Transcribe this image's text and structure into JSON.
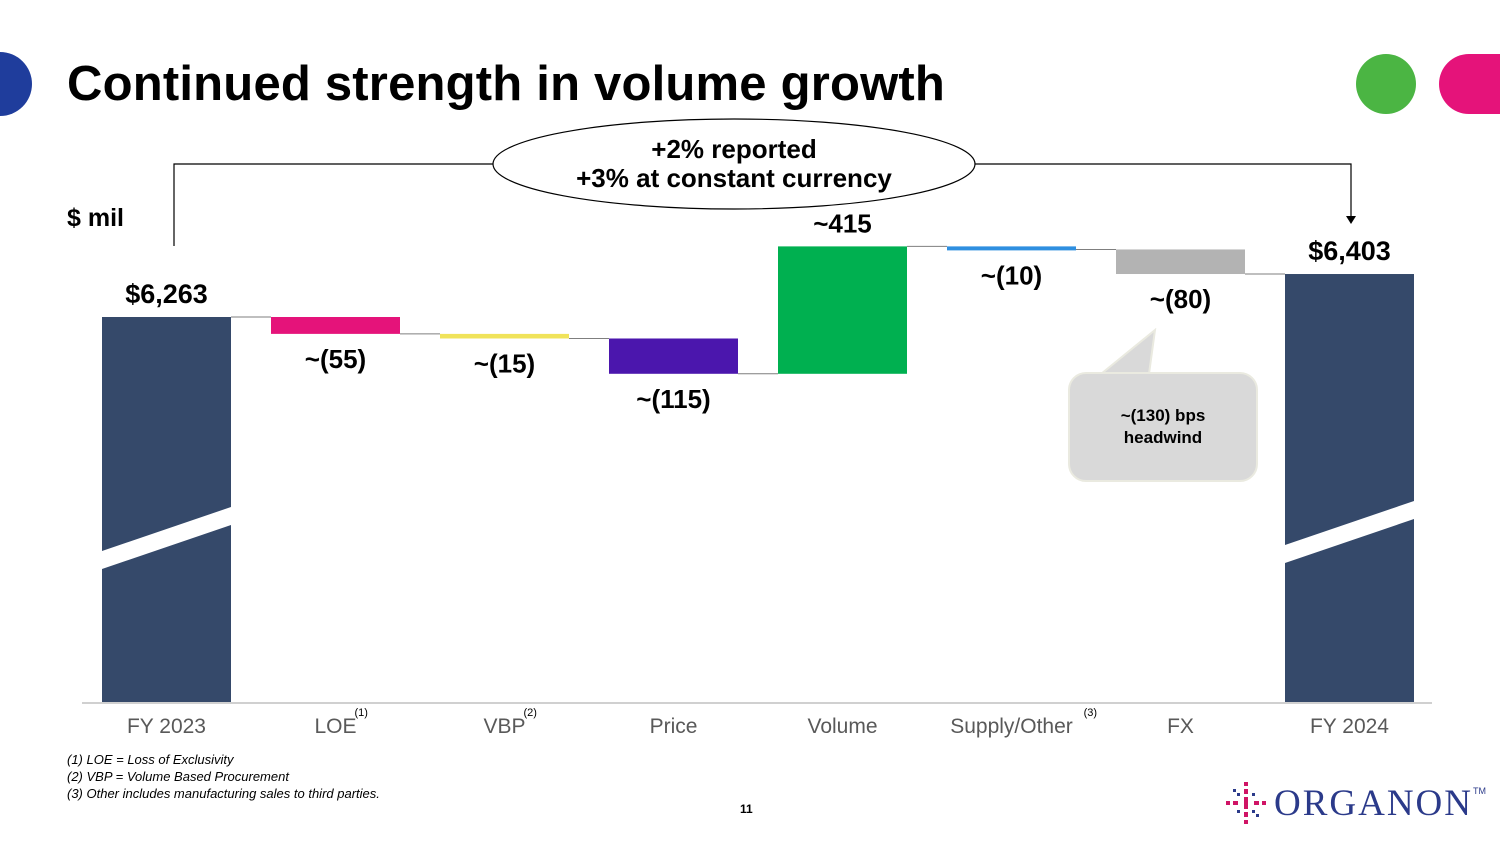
{
  "title": "Continued strength in volume growth",
  "unit_label": "$ mil",
  "summary": {
    "line1": "+2% reported",
    "line2": "+3% at constant currency"
  },
  "callout": {
    "line1": "~(130) bps",
    "line2": "headwind"
  },
  "footnotes": [
    "(1) LOE = Loss of Exclusivity",
    "(2) VBP = Volume Based Procurement",
    "(3) Other includes manufacturing sales to third parties."
  ],
  "page_number": "11",
  "logo": {
    "text": "ORGANON",
    "tm": "TM"
  },
  "colors": {
    "total": "#35496a",
    "loe": "#e5137a",
    "vbp": "#f0e35a",
    "price": "#4b16ad",
    "volume": "#00b050",
    "supply": "#2e8fe0",
    "fx": "#b3b3b3",
    "deco_blue": "#1f3d9c",
    "deco_green": "#4bb543",
    "deco_pink": "#e5137a"
  },
  "chart_data": {
    "type": "waterfall",
    "title": "Continued strength in volume growth",
    "ylabel": "$ mil",
    "y_axis_broken": true,
    "categories": [
      "FY 2023",
      "LOE",
      "VBP",
      "Price",
      "Volume",
      "Supply/Other",
      "FX",
      "FY 2024"
    ],
    "superscripts": [
      "",
      "(1)",
      "(2)",
      "",
      "",
      "(3)",
      "",
      ""
    ],
    "values": [
      6263,
      -55,
      -15,
      -115,
      415,
      -10,
      -80,
      6403
    ],
    "kinds": [
      "total",
      "delta",
      "delta",
      "delta",
      "delta",
      "delta",
      "delta",
      "total"
    ],
    "labels": [
      "$6,263",
      "~(55)",
      "~(15)",
      "~(115)",
      "~415",
      "~(10)",
      "~(80)",
      "$6,403"
    ],
    "color_keys": [
      "total",
      "loe",
      "vbp",
      "price",
      "volume",
      "supply",
      "fx",
      "total"
    ]
  }
}
